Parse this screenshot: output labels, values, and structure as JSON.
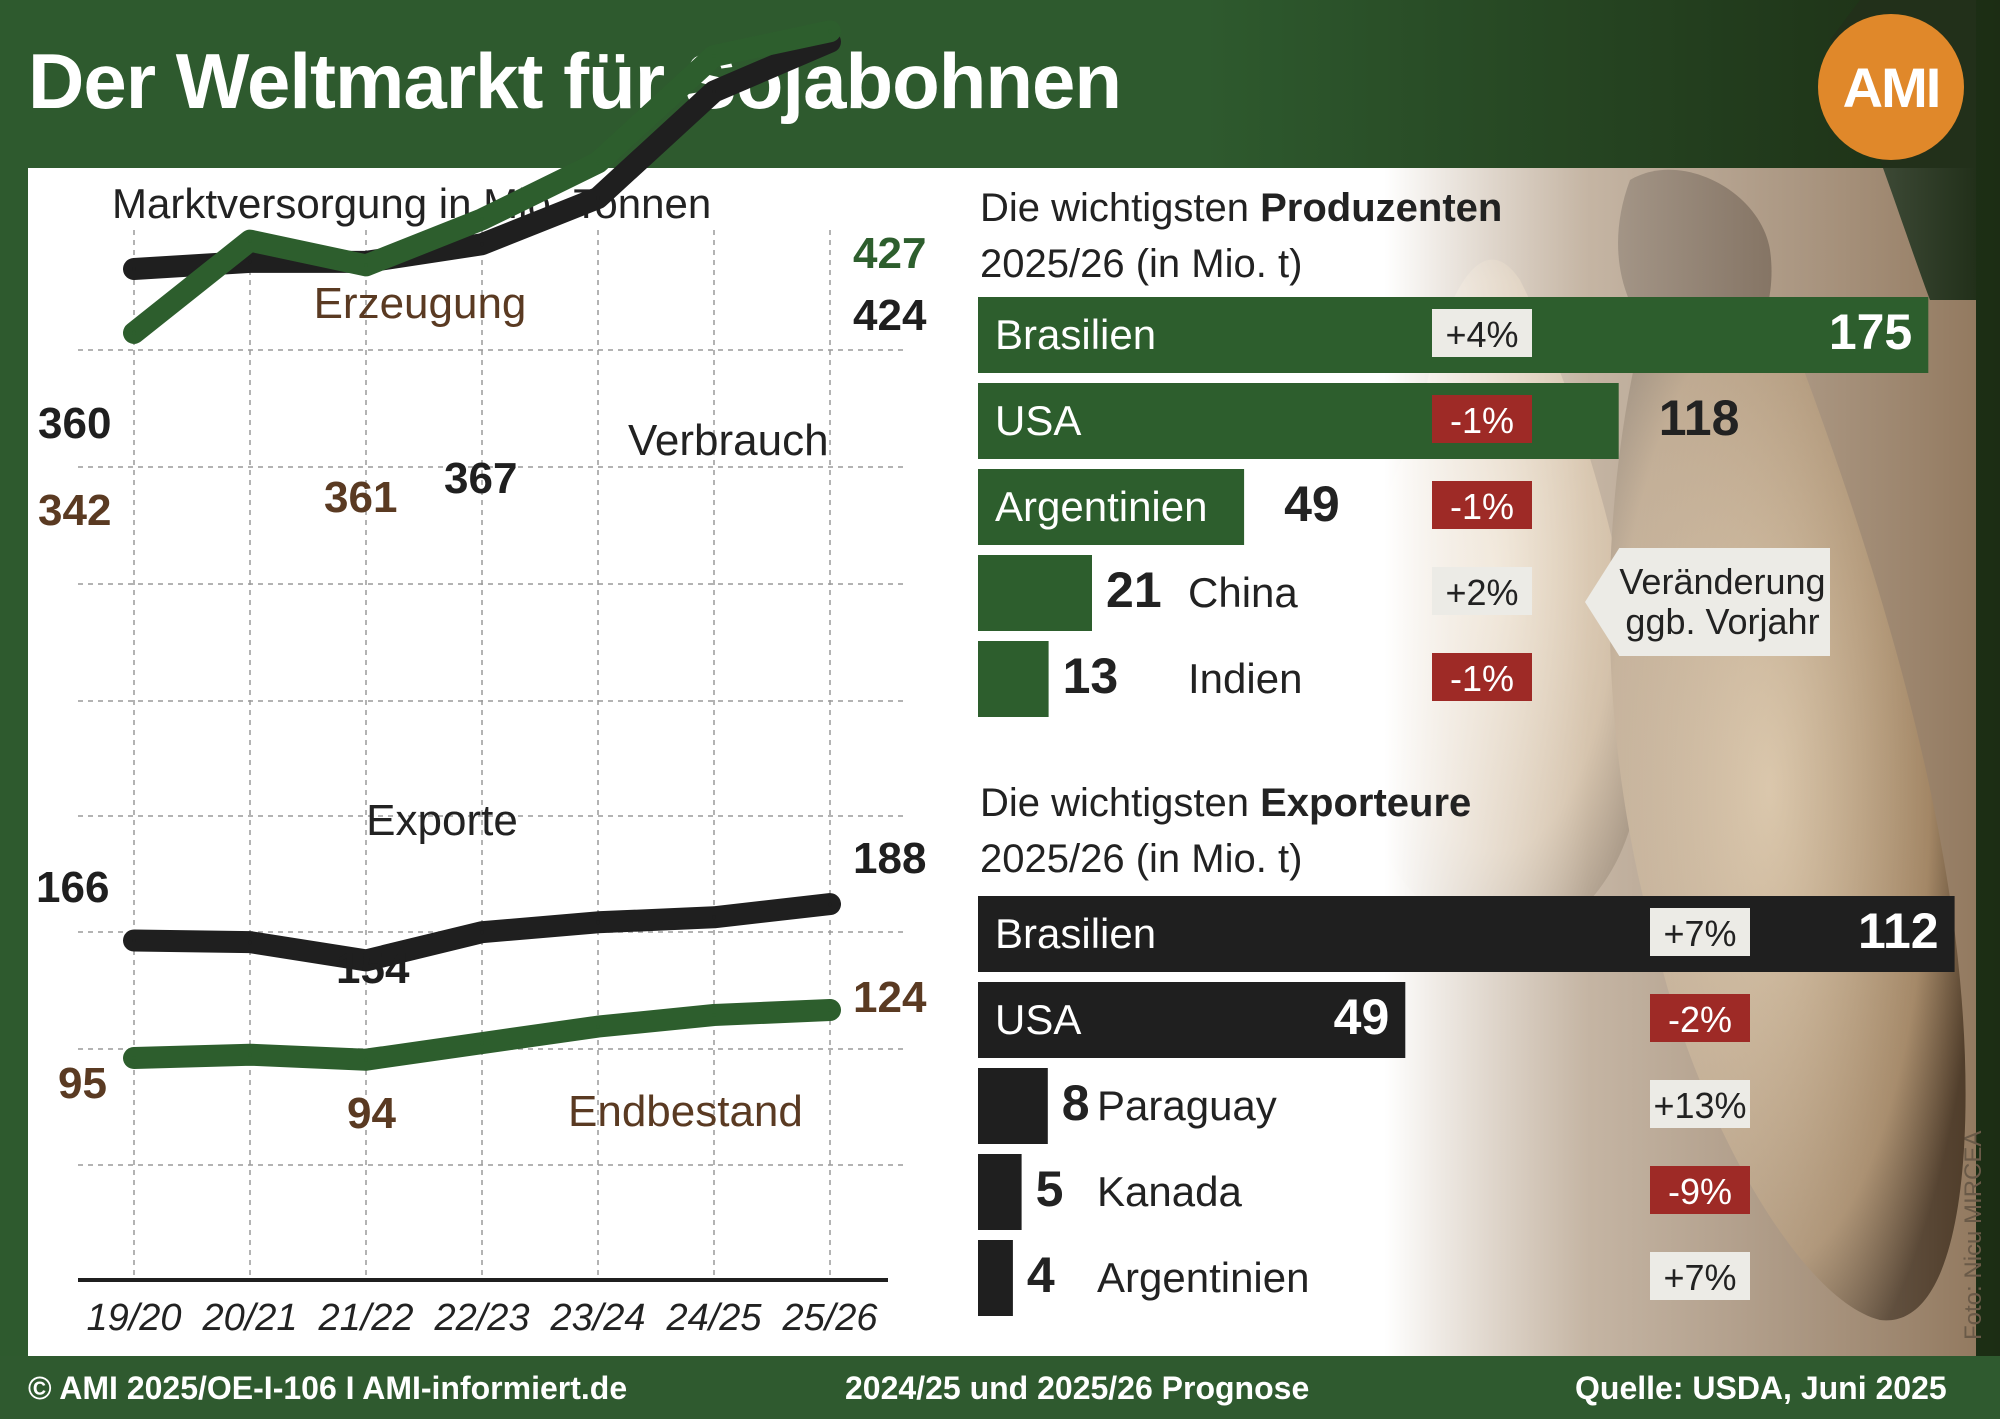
{
  "header": {
    "title": "Der Weltmarkt für Sojabohnen",
    "logo": "AMI"
  },
  "colors": {
    "green": "#2d5e2d",
    "black": "#1f1f1f",
    "brown": "#5a3a22",
    "red": "#9e2a26",
    "header": "#2f5a2f",
    "panel": "#ffffff"
  },
  "footer": {
    "copyright": "© AMI 2025/OE-I-106 I AMI-informiert.de",
    "note": "2024/25 und 2025/26 Prognose",
    "source": "Quelle: USDA, Juni 2025",
    "photo_credit": "Foto: Nicu MIRCEA"
  },
  "chart_data": [
    {
      "type": "line",
      "title": "Marktversorgung in Mio. Tonnen",
      "categories": [
        "19/20",
        "20/21",
        "21/22",
        "22/23",
        "23/24",
        "24/25",
        "25/26"
      ],
      "grid": true,
      "series": [
        {
          "name": "Erzeugung",
          "color": "green",
          "values": [
            342,
            368,
            361,
            374,
            390,
            420,
            427
          ]
        },
        {
          "name": "Verbrauch",
          "color": "black",
          "values": [
            360,
            362,
            362,
            367,
            380,
            410,
            424
          ]
        },
        {
          "name": "Exporte",
          "color": "black",
          "values": [
            166,
            165,
            154,
            171,
            177,
            180,
            188
          ]
        },
        {
          "name": "Endbestand",
          "color": "green",
          "values": [
            95,
            97,
            94,
            104,
            114,
            121,
            124
          ]
        }
      ],
      "labels": [
        {
          "text": "360",
          "color": "black"
        },
        {
          "text": "342",
          "color": "brown"
        },
        {
          "text": "361",
          "color": "brown"
        },
        {
          "text": "367",
          "color": "black"
        },
        {
          "text": "427",
          "color": "green"
        },
        {
          "text": "424",
          "color": "black"
        },
        {
          "text": "166",
          "color": "black"
        },
        {
          "text": "154",
          "color": "black"
        },
        {
          "text": "188",
          "color": "black"
        },
        {
          "text": "95",
          "color": "brown"
        },
        {
          "text": "94",
          "color": "brown"
        },
        {
          "text": "124",
          "color": "brown"
        }
      ]
    },
    {
      "type": "bar",
      "title_pre": "Die wichtigsten ",
      "title_bold": "Produzenten",
      "title_line2": "2025/26 (in Mio. t)",
      "bar_color": "green",
      "categories": [
        "Brasilien",
        "USA",
        "Argentinien",
        "China",
        "Indien"
      ],
      "values": [
        175,
        118,
        49,
        21,
        13
      ],
      "changes": [
        {
          "text": "+4%",
          "negative": false
        },
        {
          "text": "-1%",
          "negative": true
        },
        {
          "text": "-1%",
          "negative": true
        },
        {
          "text": "+2%",
          "negative": false
        },
        {
          "text": "-1%",
          "negative": true
        }
      ],
      "annotation": "Veränderung\nggb. Vorjahr"
    },
    {
      "type": "bar",
      "title_pre": "Die wichtigsten ",
      "title_bold": "Exporteure",
      "title_line2": "2025/26 (in Mio. t)",
      "bar_color": "black",
      "categories": [
        "Brasilien",
        "USA",
        "Paraguay",
        "Kanada",
        "Argentinien"
      ],
      "values": [
        112,
        49,
        8,
        5,
        4
      ],
      "changes": [
        {
          "text": "+7%",
          "negative": false
        },
        {
          "text": "-2%",
          "negative": true
        },
        {
          "text": "+13%",
          "negative": false
        },
        {
          "text": "-9%",
          "negative": true
        },
        {
          "text": "+7%",
          "negative": false
        }
      ]
    }
  ]
}
